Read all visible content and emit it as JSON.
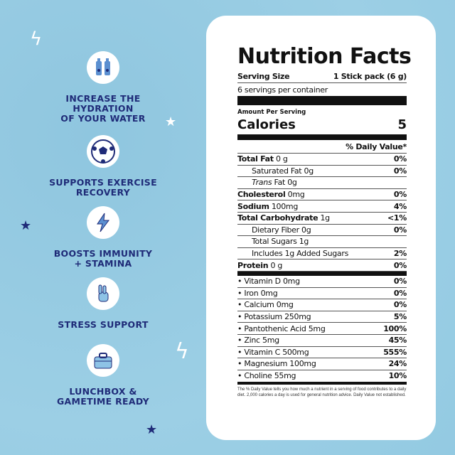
{
  "colors": {
    "background": "#94cbe2",
    "accent": "#1f2b78",
    "card": "#ffffff"
  },
  "features": [
    {
      "icon": "water-bottles-icon",
      "label": "INCREASE THE HYDRATION OF YOUR WATER",
      "lines": [
        "INCREASE THE",
        "HYDRATION",
        "OF YOUR WATER"
      ]
    },
    {
      "icon": "soccer-ball-icon",
      "label": "SUPPORTS EXERCISE RECOVERY",
      "lines": [
        "SUPPORTS EXERCISE",
        "RECOVERY"
      ]
    },
    {
      "icon": "lightning-icon",
      "label": "BOOSTS IMMUNITY + STAMINA",
      "lines": [
        "BOOSTS IMMUNITY",
        "+ STAMINA"
      ]
    },
    {
      "icon": "peace-hand-icon",
      "label": "STRESS SUPPORT",
      "lines": [
        "STRESS SUPPORT"
      ]
    },
    {
      "icon": "lunchbox-icon",
      "label": "LUNCHBOX & GAMETIME READY",
      "lines": [
        "LUNCHBOX &",
        "GAMETIME READY"
      ]
    }
  ],
  "nutrition": {
    "title": "Nutrition Facts",
    "serving_size_label": "Serving Size",
    "serving_size": "1 Stick pack (6 g)",
    "servings": "6 servings per container",
    "amount_per_serving": "Amount Per Serving",
    "calories_label": "Calories",
    "calories": "5",
    "dv_header": "% Daily Value*",
    "rows": [
      {
        "name": "Total Fat",
        "amount": "0 g",
        "dv": "0%",
        "bold": true
      },
      {
        "name": "Saturated Fat 0g",
        "amount": "",
        "dv": "0%",
        "indent": true
      },
      {
        "name": "Trans",
        "amount": "Fat 0g",
        "dv": "",
        "indent": true,
        "italic": true
      },
      {
        "name": "Cholesterol",
        "amount": "0mg",
        "dv": "0%",
        "bold": true
      },
      {
        "name": "Sodium",
        "amount": "100mg",
        "dv": "4%",
        "bold": true
      },
      {
        "name": "Total Carbohydrate",
        "amount": "1g",
        "dv": "<1%",
        "bold": true
      },
      {
        "name": "Dietary Fiber 0g",
        "amount": "",
        "dv": "0%",
        "indent": true
      },
      {
        "name": "Total Sugars 1g",
        "amount": "",
        "dv": "",
        "indent": true
      },
      {
        "name": "Includes 1g Added Sugars",
        "amount": "",
        "dv": "2%",
        "indent": true
      },
      {
        "name": "Protein",
        "amount": "0 g",
        "dv": "0%",
        "bold": true
      }
    ],
    "vitamins": [
      {
        "name": "• Vitamin D 0mg",
        "dv": "0%"
      },
      {
        "name": "• Iron 0mg",
        "dv": "0%"
      },
      {
        "name": "• Calcium 0mg",
        "dv": "0%"
      },
      {
        "name": "• Potassium 250mg",
        "dv": "5%"
      },
      {
        "name": "• Pantothenic Acid 5mg",
        "dv": "100%"
      },
      {
        "name": "• Zinc 5mg",
        "dv": "45%"
      },
      {
        "name": "• Vitamin C 500mg",
        "dv": "555%"
      },
      {
        "name": "• Magnesium 100mg",
        "dv": "24%"
      },
      {
        "name": "• Choline 55mg",
        "dv": "10%"
      }
    ],
    "footnote": "The % Daily Value tells you how much a nutrient in a serving of food contributes to a daily diet. 2,000 calories a day is used for general nutrition advice. Daily Value not established."
  }
}
